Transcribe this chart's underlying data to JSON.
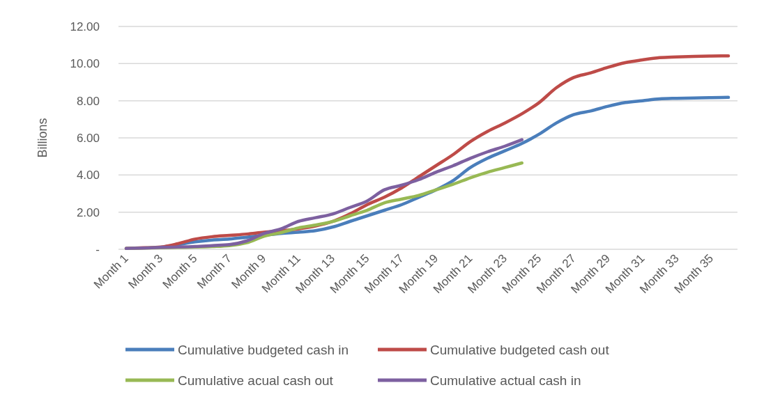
{
  "chart_data": {
    "type": "line",
    "ylabel": "Billions",
    "categories": [
      "Month 1",
      null,
      "Month 3",
      null,
      "Month 5",
      null,
      "Month 7",
      null,
      "Month 9",
      null,
      "Month 11",
      null,
      "Month 13",
      null,
      "Month 15",
      null,
      "Month 17",
      null,
      "Month 19",
      null,
      "Month 21",
      null,
      "Month 23",
      null,
      "Month 25",
      null,
      "Month 27",
      null,
      "Month 29",
      null,
      "Month 31",
      null,
      "Month 33",
      null,
      "Month 35",
      null
    ],
    "series": [
      {
        "name": "Cumulative budgeted cash in",
        "color": "#4a7ebb",
        "values": [
          null,
          null,
          0.1,
          0.25,
          0.4,
          0.5,
          0.55,
          0.65,
          0.75,
          0.85,
          0.92,
          1.0,
          1.2,
          1.5,
          1.8,
          2.1,
          2.4,
          2.8,
          3.2,
          3.7,
          4.4,
          4.9,
          5.3,
          5.7,
          6.2,
          6.8,
          7.25,
          7.45,
          7.7,
          7.9,
          8.0,
          8.1,
          8.13,
          8.15,
          8.17,
          8.18
        ]
      },
      {
        "name": "Cumulative budgeted cash out",
        "color": "#be4b48",
        "values": [
          0.05,
          0.08,
          0.12,
          0.3,
          0.55,
          0.68,
          0.75,
          0.82,
          0.92,
          1.0,
          1.1,
          1.25,
          1.5,
          1.9,
          2.4,
          2.8,
          3.3,
          3.9,
          4.5,
          5.1,
          5.8,
          6.35,
          6.8,
          7.3,
          7.9,
          8.7,
          9.25,
          9.5,
          9.8,
          10.05,
          10.2,
          10.32,
          10.36,
          10.39,
          10.41,
          10.42
        ]
      },
      {
        "name": "Cumulative acual cash out",
        "color": "#98b954",
        "values": [
          0.05,
          0.07,
          0.08,
          0.1,
          0.12,
          0.15,
          0.2,
          0.35,
          0.7,
          0.9,
          1.15,
          1.3,
          1.5,
          1.8,
          2.1,
          2.5,
          2.7,
          2.9,
          3.2,
          3.5,
          3.85,
          4.15,
          4.4,
          4.65,
          null,
          null,
          null,
          null,
          null,
          null,
          null,
          null,
          null,
          null,
          null,
          null
        ]
      },
      {
        "name": "Cumulative actual cash in",
        "color": "#7d60a0",
        "values": [
          0.05,
          0.07,
          0.1,
          0.12,
          0.15,
          0.2,
          0.25,
          0.45,
          0.85,
          1.1,
          1.5,
          1.7,
          1.9,
          2.25,
          2.6,
          3.2,
          3.45,
          3.75,
          4.15,
          4.5,
          4.9,
          5.25,
          5.55,
          5.9,
          null,
          null,
          null,
          null,
          null,
          null,
          null,
          null,
          null,
          null,
          null,
          null
        ]
      }
    ],
    "ylim": [
      0,
      12
    ],
    "yticks": [
      {
        "value": 0,
        "label": "-"
      },
      {
        "value": 2,
        "label": "2.00"
      },
      {
        "value": 4,
        "label": "4.00"
      },
      {
        "value": 6,
        "label": "6.00"
      },
      {
        "value": 8,
        "label": "8.00"
      },
      {
        "value": 10,
        "label": "10.00"
      },
      {
        "value": 12,
        "label": "12.00"
      }
    ],
    "grid": "y",
    "legend": "bottom",
    "line_style": "solid",
    "marker": "none"
  }
}
